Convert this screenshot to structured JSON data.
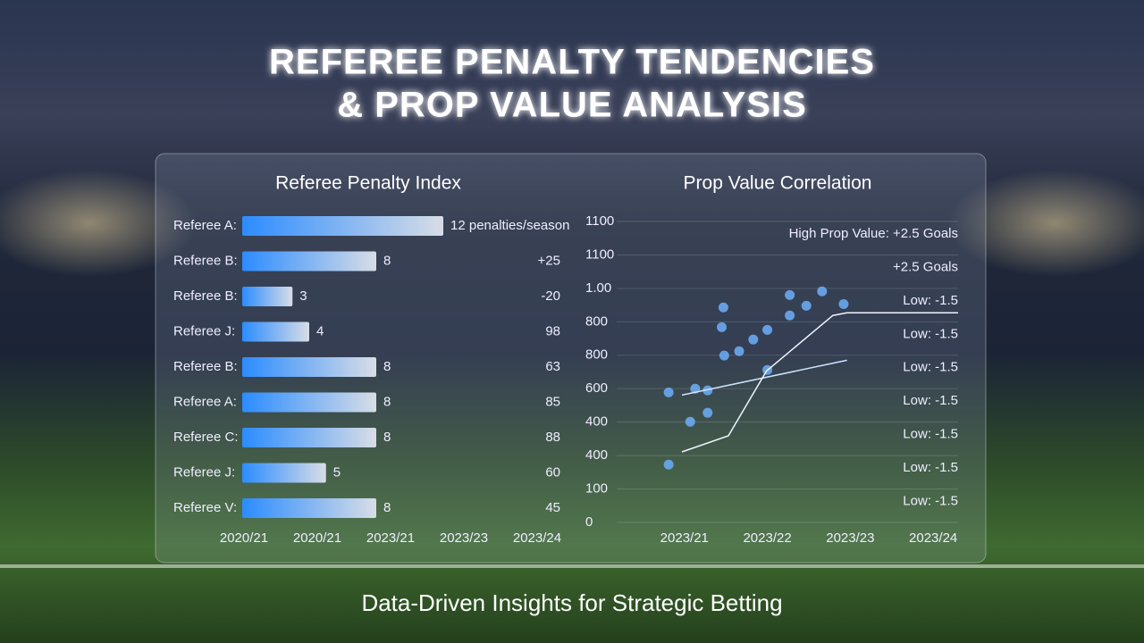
{
  "header": {
    "title": [
      "REFEREE PENALTY TENDENCIES",
      "& PROP VALUE ANALYSIS"
    ]
  },
  "chart_data": [
    {
      "type": "bar",
      "title": "Referee Penalty Index",
      "categories": [
        "Referee A:",
        "Referee B:",
        "Referee B:",
        "Referee J:",
        "Referee B:",
        "Referee A:",
        "Referee C:",
        "Referee J:",
        "Referee V:"
      ],
      "values": [
        12,
        8,
        3,
        4,
        8,
        8,
        8,
        5,
        8
      ],
      "value_labels": [
        "12 penalties/season",
        "8",
        "3",
        "4",
        "8",
        "8",
        "8",
        "5",
        "8"
      ],
      "side_column": [
        null,
        "+25",
        "-20",
        "98",
        "63",
        "85",
        "88",
        "60",
        "45"
      ],
      "x_labels": [
        "2020/21",
        "2020/21",
        "2023/21",
        "2023/23",
        "2023/24"
      ],
      "color": "#2b8cff"
    },
    {
      "type": "scatter",
      "title": "Prop Value Correlation",
      "xlim": [
        0,
        4.3
      ],
      "ylim": [
        0,
        900
      ],
      "xticks": [
        {
          "value": 1,
          "label": "2023/21"
        },
        {
          "value": 2,
          "label": "2023/22"
        },
        {
          "value": 3,
          "label": "2023/23"
        },
        {
          "value": 4,
          "label": "2023/24"
        }
      ],
      "yticks": [
        0,
        100,
        {
          "value": 200,
          "label": "400"
        },
        {
          "value": 300,
          "label": "400"
        },
        {
          "value": 400,
          "label": "600"
        },
        {
          "value": 500,
          "label": "800"
        },
        {
          "value": 600,
          "label": "800"
        },
        {
          "value": 700,
          "label": "1.00"
        },
        {
          "value": 800,
          "label": "1100"
        },
        {
          "value": 900,
          "label": "1100"
        }
      ],
      "grid": true,
      "annotations": [
        "High Prop Value: +2.5 Goals",
        "+2.5 Goals",
        "Low: -1.5",
        "Low: -1.5",
        "Low: -1.5",
        "Low: -1.5",
        "Low: -1.5",
        "Low: -1.5",
        "Low: -1.5"
      ],
      "series": [
        {
          "color": "#6aa8f0",
          "x": [
            0.81,
            1.13,
            1.28,
            1.07,
            1.28,
            0.81,
            1.47,
            1.45,
            1.48,
            1.66,
            1.83,
            2.0,
            2.0,
            2.27,
            2.27,
            2.47,
            2.66,
            2.92
          ],
          "values": [
            389,
            400,
            395,
            301,
            328,
            173,
            643,
            584,
            499,
            512,
            547,
            576,
            456,
            680,
            619,
            648,
            691,
            653
          ]
        },
        {
          "color": "#cfe3ff",
          "line": true,
          "x": [
            0.97,
            2.96
          ],
          "values": [
            381,
            485
          ]
        },
        {
          "color": "#eef5ff",
          "line": true,
          "x": [
            0.97,
            1.53,
            1.99,
            2.79,
            2.96,
            4.3
          ],
          "values": [
            211,
            259,
            453,
            619,
            627,
            627
          ]
        }
      ]
    }
  ],
  "footer": "Data-Driven Insights for Strategic Betting"
}
